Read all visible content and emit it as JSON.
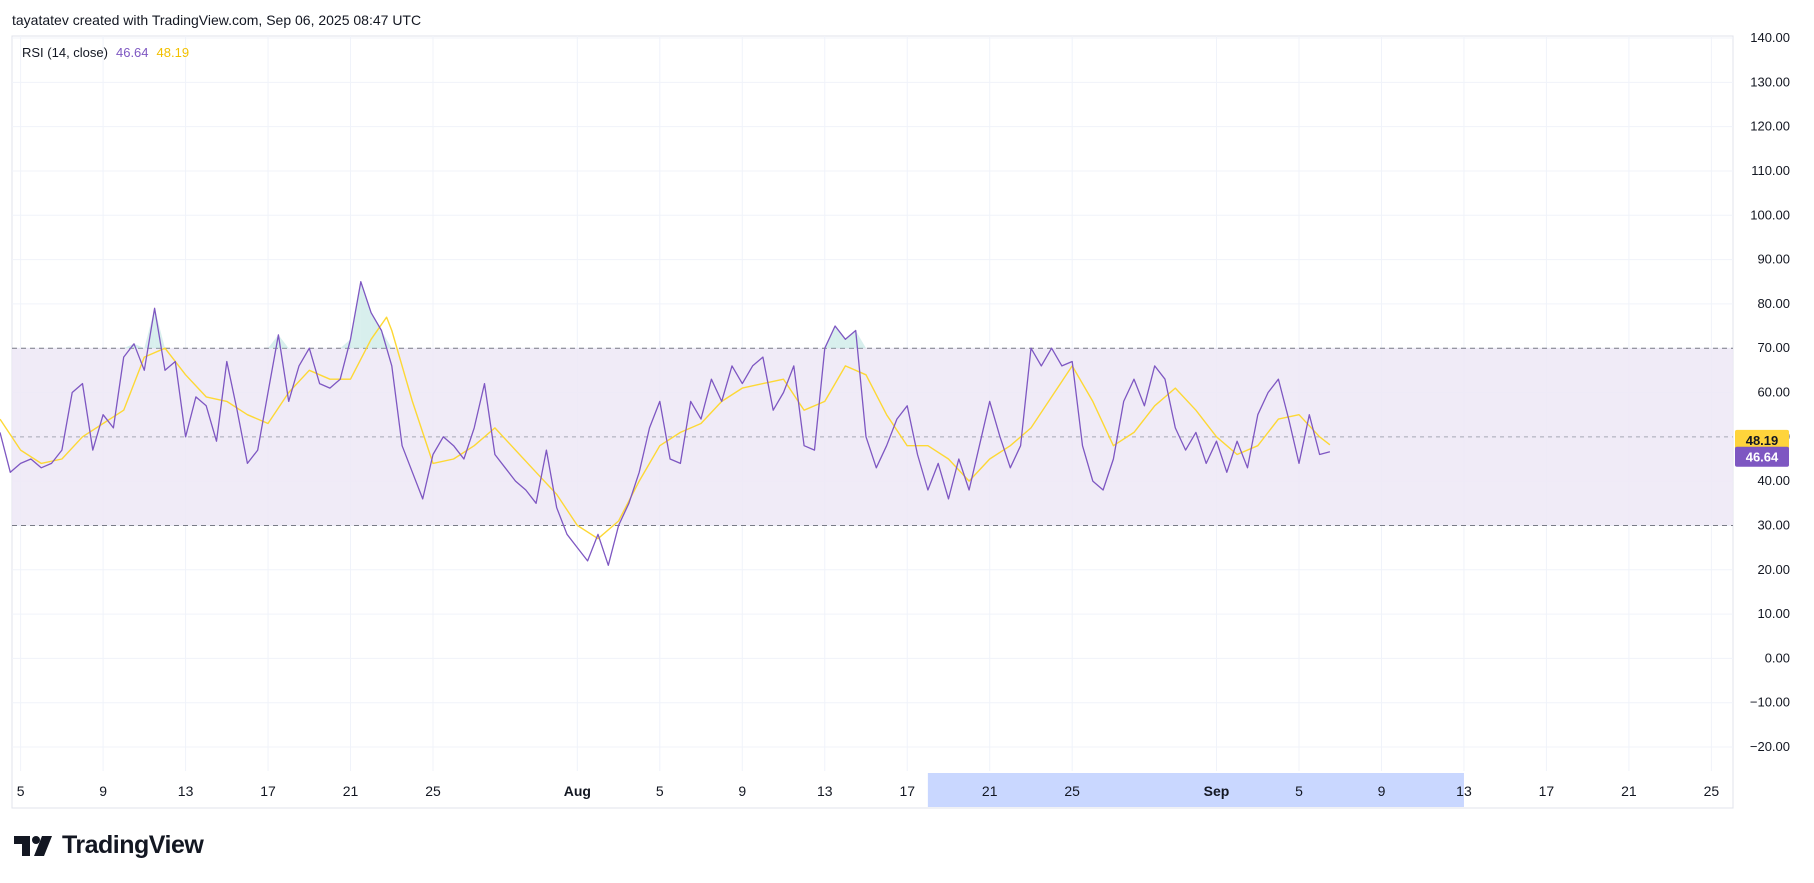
{
  "header": {
    "attribution": "tayatatev created with TradingView.com, Sep 06, 2025 08:47 UTC"
  },
  "legend": {
    "label": "RSI (14, close)",
    "rsi_value": "46.64",
    "ma_value": "48.19"
  },
  "brand": {
    "logo_icon": "tradingview-logo-icon",
    "name": "TradingView"
  },
  "colors": {
    "rsi_line": "#7E57C2",
    "ma_line": "#FDD835",
    "band_fill": "#EDE7F6",
    "overbought_fill": "#B2DFDB",
    "highlight": "#C9D7FF",
    "grid": "#F0F3FA"
  },
  "chart_data": {
    "type": "line",
    "title": "",
    "xlabel": "",
    "ylabel": "",
    "ylim": [
      -20,
      140
    ],
    "y_ticks": [
      "140.00",
      "130.00",
      "120.00",
      "110.00",
      "100.00",
      "90.00",
      "80.00",
      "70.00",
      "60.00",
      "50.00",
      "40.00",
      "30.00",
      "20.00",
      "10.00",
      "0.00",
      "−10.00",
      "−20.00"
    ],
    "y_tick_values": [
      140,
      130,
      120,
      110,
      100,
      90,
      80,
      70,
      60,
      50,
      40,
      30,
      20,
      10,
      0,
      -10,
      -20
    ],
    "x_range": [
      "2025-07-04",
      "2025-09-26"
    ],
    "x_ticks": [
      {
        "label": "5",
        "date": "2025-07-05"
      },
      {
        "label": "9",
        "date": "2025-07-09"
      },
      {
        "label": "13",
        "date": "2025-07-13"
      },
      {
        "label": "17",
        "date": "2025-07-17"
      },
      {
        "label": "21",
        "date": "2025-07-21"
      },
      {
        "label": "25",
        "date": "2025-07-25"
      },
      {
        "label": "Aug",
        "date": "2025-08-01",
        "bold": true
      },
      {
        "label": "5",
        "date": "2025-08-05"
      },
      {
        "label": "9",
        "date": "2025-08-09"
      },
      {
        "label": "13",
        "date": "2025-08-13"
      },
      {
        "label": "17",
        "date": "2025-08-17"
      },
      {
        "label": "21",
        "date": "2025-08-21"
      },
      {
        "label": "25",
        "date": "2025-08-25"
      },
      {
        "label": "Sep",
        "date": "2025-09-01",
        "bold": true
      },
      {
        "label": "5",
        "date": "2025-09-05"
      },
      {
        "label": "9",
        "date": "2025-09-09"
      },
      {
        "label": "13",
        "date": "2025-09-13"
      },
      {
        "label": "17",
        "date": "2025-09-17"
      },
      {
        "label": "21",
        "date": "2025-09-21"
      },
      {
        "label": "25",
        "date": "2025-09-25"
      }
    ],
    "highlight_range": [
      "2025-08-18",
      "2025-09-13"
    ],
    "overbought": 70,
    "middle": 50,
    "oversold": 30,
    "series": [
      {
        "name": "RSI",
        "line": "rsi",
        "points": [
          [
            "2025-07-04",
            51
          ],
          [
            "2025-07-04T12:00",
            42
          ],
          [
            "2025-07-05",
            44
          ],
          [
            "2025-07-05T12:00",
            45
          ],
          [
            "2025-07-06",
            43
          ],
          [
            "2025-07-06T12:00",
            44
          ],
          [
            "2025-07-07",
            47
          ],
          [
            "2025-07-07T12:00",
            60
          ],
          [
            "2025-07-08",
            62
          ],
          [
            "2025-07-08T12:00",
            47
          ],
          [
            "2025-07-09",
            55
          ],
          [
            "2025-07-09T12:00",
            52
          ],
          [
            "2025-07-10",
            68
          ],
          [
            "2025-07-10T12:00",
            71
          ],
          [
            "2025-07-11",
            65
          ],
          [
            "2025-07-11T12:00",
            79
          ],
          [
            "2025-07-12",
            65
          ],
          [
            "2025-07-12T12:00",
            67
          ],
          [
            "2025-07-13",
            50
          ],
          [
            "2025-07-13T12:00",
            59
          ],
          [
            "2025-07-14",
            57
          ],
          [
            "2025-07-14T12:00",
            49
          ],
          [
            "2025-07-15",
            67
          ],
          [
            "2025-07-15T12:00",
            56
          ],
          [
            "2025-07-16",
            44
          ],
          [
            "2025-07-16T12:00",
            47
          ],
          [
            "2025-07-17",
            60
          ],
          [
            "2025-07-17T12:00",
            73
          ],
          [
            "2025-07-18",
            58
          ],
          [
            "2025-07-18T12:00",
            66
          ],
          [
            "2025-07-19",
            70
          ],
          [
            "2025-07-19T12:00",
            62
          ],
          [
            "2025-07-20",
            61
          ],
          [
            "2025-07-20T12:00",
            63
          ],
          [
            "2025-07-21",
            72
          ],
          [
            "2025-07-21T12:00",
            85
          ],
          [
            "2025-07-22",
            78
          ],
          [
            "2025-07-22T12:00",
            74
          ],
          [
            "2025-07-23",
            66
          ],
          [
            "2025-07-23T12:00",
            48
          ],
          [
            "2025-07-24",
            42
          ],
          [
            "2025-07-24T12:00",
            36
          ],
          [
            "2025-07-25",
            46
          ],
          [
            "2025-07-25T12:00",
            50
          ],
          [
            "2025-07-26",
            48
          ],
          [
            "2025-07-26T12:00",
            45
          ],
          [
            "2025-07-27",
            52
          ],
          [
            "2025-07-27T12:00",
            62
          ],
          [
            "2025-07-28",
            46
          ],
          [
            "2025-07-28T12:00",
            43
          ],
          [
            "2025-07-29",
            40
          ],
          [
            "2025-07-29T12:00",
            38
          ],
          [
            "2025-07-30",
            35
          ],
          [
            "2025-07-30T12:00",
            47
          ],
          [
            "2025-07-31",
            34
          ],
          [
            "2025-07-31T12:00",
            28
          ],
          [
            "2025-08-01",
            25
          ],
          [
            "2025-08-01T12:00",
            22
          ],
          [
            "2025-08-02",
            28
          ],
          [
            "2025-08-02T12:00",
            21
          ],
          [
            "2025-08-03",
            30
          ],
          [
            "2025-08-03T12:00",
            35
          ],
          [
            "2025-08-04",
            42
          ],
          [
            "2025-08-04T12:00",
            52
          ],
          [
            "2025-08-05",
            58
          ],
          [
            "2025-08-05T12:00",
            45
          ],
          [
            "2025-08-06",
            44
          ],
          [
            "2025-08-06T12:00",
            58
          ],
          [
            "2025-08-07",
            54
          ],
          [
            "2025-08-07T12:00",
            63
          ],
          [
            "2025-08-08",
            58
          ],
          [
            "2025-08-08T12:00",
            66
          ],
          [
            "2025-08-09",
            62
          ],
          [
            "2025-08-09T12:00",
            66
          ],
          [
            "2025-08-10",
            68
          ],
          [
            "2025-08-10T12:00",
            56
          ],
          [
            "2025-08-11",
            60
          ],
          [
            "2025-08-11T12:00",
            66
          ],
          [
            "2025-08-12",
            48
          ],
          [
            "2025-08-12T12:00",
            47
          ],
          [
            "2025-08-13",
            70
          ],
          [
            "2025-08-13T12:00",
            75
          ],
          [
            "2025-08-14",
            72
          ],
          [
            "2025-08-14T12:00",
            74
          ],
          [
            "2025-08-15",
            50
          ],
          [
            "2025-08-15T12:00",
            43
          ],
          [
            "2025-08-16",
            48
          ],
          [
            "2025-08-16T12:00",
            54
          ],
          [
            "2025-08-17",
            57
          ],
          [
            "2025-08-17T12:00",
            46
          ],
          [
            "2025-08-18",
            38
          ],
          [
            "2025-08-18T12:00",
            44
          ],
          [
            "2025-08-19",
            36
          ],
          [
            "2025-08-19T12:00",
            45
          ],
          [
            "2025-08-20",
            38
          ],
          [
            "2025-08-20T12:00",
            48
          ],
          [
            "2025-08-21",
            58
          ],
          [
            "2025-08-21T12:00",
            50
          ],
          [
            "2025-08-22",
            43
          ],
          [
            "2025-08-22T12:00",
            48
          ],
          [
            "2025-08-23",
            70
          ],
          [
            "2025-08-23T12:00",
            66
          ],
          [
            "2025-08-24",
            70
          ],
          [
            "2025-08-24T12:00",
            66
          ],
          [
            "2025-08-25",
            67
          ],
          [
            "2025-08-25T12:00",
            48
          ],
          [
            "2025-08-26",
            40
          ],
          [
            "2025-08-26T12:00",
            38
          ],
          [
            "2025-08-27",
            45
          ],
          [
            "2025-08-27T12:00",
            58
          ],
          [
            "2025-08-28",
            63
          ],
          [
            "2025-08-28T12:00",
            57
          ],
          [
            "2025-08-29",
            66
          ],
          [
            "2025-08-29T12:00",
            63
          ],
          [
            "2025-08-30",
            52
          ],
          [
            "2025-08-30T12:00",
            47
          ],
          [
            "2025-08-31",
            51
          ],
          [
            "2025-08-31T12:00",
            44
          ],
          [
            "2025-09-01",
            49
          ],
          [
            "2025-09-01T12:00",
            42
          ],
          [
            "2025-09-02",
            49
          ],
          [
            "2025-09-02T12:00",
            43
          ],
          [
            "2025-09-03",
            55
          ],
          [
            "2025-09-03T12:00",
            60
          ],
          [
            "2025-09-04",
            63
          ],
          [
            "2025-09-04T12:00",
            54
          ],
          [
            "2025-09-05",
            44
          ],
          [
            "2025-09-05T12:00",
            55
          ],
          [
            "2025-09-06",
            46
          ],
          [
            "2025-09-06T12:00",
            46.64
          ]
        ]
      },
      {
        "name": "RSI-based MA",
        "line": "ma",
        "points": [
          [
            "2025-07-04",
            54
          ],
          [
            "2025-07-05",
            47
          ],
          [
            "2025-07-06",
            44
          ],
          [
            "2025-07-07",
            45
          ],
          [
            "2025-07-08",
            50
          ],
          [
            "2025-07-09",
            53
          ],
          [
            "2025-07-10",
            56
          ],
          [
            "2025-07-11",
            68
          ],
          [
            "2025-07-12",
            70
          ],
          [
            "2025-07-13",
            64
          ],
          [
            "2025-07-14",
            59
          ],
          [
            "2025-07-15",
            58
          ],
          [
            "2025-07-16",
            55
          ],
          [
            "2025-07-17",
            53
          ],
          [
            "2025-07-18",
            60
          ],
          [
            "2025-07-19",
            65
          ],
          [
            "2025-07-20",
            63
          ],
          [
            "2025-07-21",
            63
          ],
          [
            "2025-07-22",
            72
          ],
          [
            "2025-07-22T18:00",
            77
          ],
          [
            "2025-07-23",
            74
          ],
          [
            "2025-07-24",
            58
          ],
          [
            "2025-07-25",
            44
          ],
          [
            "2025-07-26",
            45
          ],
          [
            "2025-07-27",
            48
          ],
          [
            "2025-07-28",
            52
          ],
          [
            "2025-07-29",
            47
          ],
          [
            "2025-07-30",
            42
          ],
          [
            "2025-07-31",
            37
          ],
          [
            "2025-08-01",
            30
          ],
          [
            "2025-08-02",
            27
          ],
          [
            "2025-08-03",
            31
          ],
          [
            "2025-08-04",
            40
          ],
          [
            "2025-08-05",
            48
          ],
          [
            "2025-08-06",
            51
          ],
          [
            "2025-08-07",
            53
          ],
          [
            "2025-08-08",
            58
          ],
          [
            "2025-08-09",
            61
          ],
          [
            "2025-08-10",
            62
          ],
          [
            "2025-08-11",
            63
          ],
          [
            "2025-08-12",
            56
          ],
          [
            "2025-08-13",
            58
          ],
          [
            "2025-08-14",
            66
          ],
          [
            "2025-08-15",
            64
          ],
          [
            "2025-08-16",
            55
          ],
          [
            "2025-08-17",
            48
          ],
          [
            "2025-08-18",
            48
          ],
          [
            "2025-08-19",
            45
          ],
          [
            "2025-08-20",
            40
          ],
          [
            "2025-08-21",
            45
          ],
          [
            "2025-08-22",
            48
          ],
          [
            "2025-08-23",
            52
          ],
          [
            "2025-08-24",
            59
          ],
          [
            "2025-08-25",
            66
          ],
          [
            "2025-08-26",
            58
          ],
          [
            "2025-08-27",
            48
          ],
          [
            "2025-08-28",
            51
          ],
          [
            "2025-08-29",
            57
          ],
          [
            "2025-08-30",
            61
          ],
          [
            "2025-08-31",
            56
          ],
          [
            "2025-09-01",
            50
          ],
          [
            "2025-09-02",
            46
          ],
          [
            "2025-09-03",
            48
          ],
          [
            "2025-09-04",
            54
          ],
          [
            "2025-09-05",
            55
          ],
          [
            "2025-09-06",
            50
          ],
          [
            "2025-09-06T12:00",
            48.19
          ]
        ]
      }
    ]
  }
}
